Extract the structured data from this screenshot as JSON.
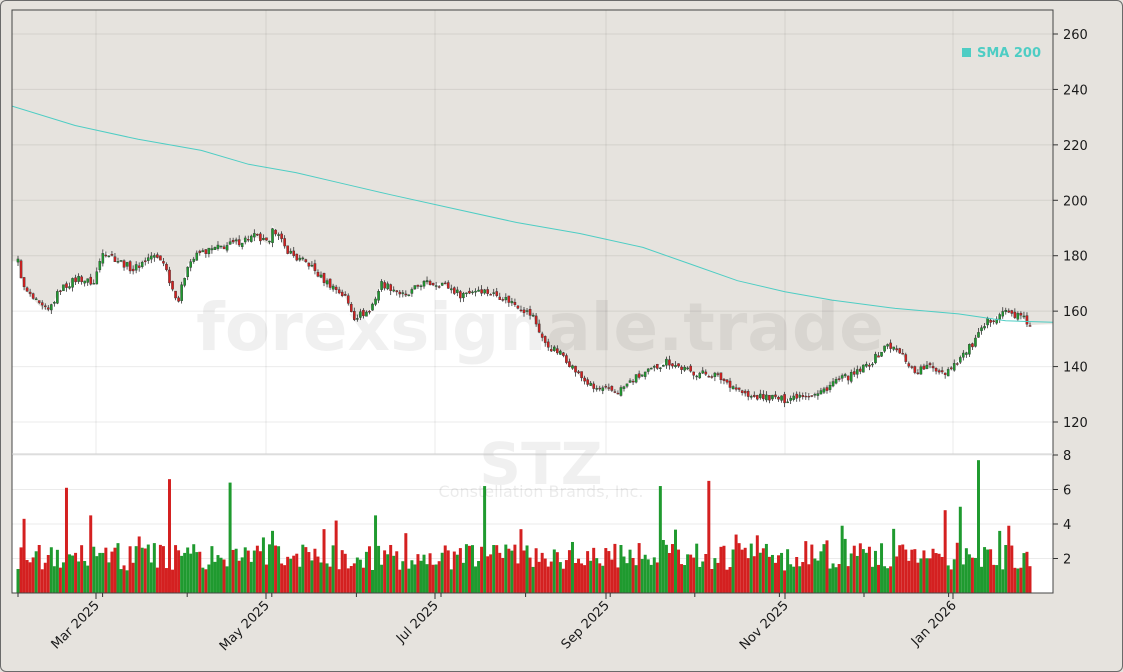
{
  "watermark": {
    "site": "forexsignale.trade",
    "ticker": "STZ",
    "company": "Constellation Brands, Inc."
  },
  "legend": {
    "label": "SMA 200",
    "color": "#4ecdc4"
  },
  "colors": {
    "up": "#1f9a2f",
    "down": "#d42020",
    "sma": "#4ecdc4",
    "plot_bg": "#ffffff",
    "fill_bg": "#e6e3de"
  },
  "chart_data": {
    "type": "candlestick",
    "x_ticks": [
      "Mar 2025",
      "May 2025",
      "Jul 2025",
      "Sep 2025",
      "Nov 2025",
      "Jan 2026"
    ],
    "price_axis": {
      "ylim": [
        115,
        268
      ],
      "ticks": [
        120,
        140,
        160,
        180,
        200,
        220,
        240,
        260
      ]
    },
    "volume_axis": {
      "ylim": [
        0,
        9
      ],
      "ticks": [
        2,
        4,
        6,
        8
      ]
    },
    "last_close": 155.3,
    "sma200": {
      "name": "SMA 200",
      "points": [
        [
          0,
          234
        ],
        [
          20,
          227
        ],
        [
          40,
          222
        ],
        [
          60,
          218
        ],
        [
          75,
          213
        ],
        [
          90,
          210
        ],
        [
          105,
          206
        ],
        [
          120,
          202
        ],
        [
          140,
          197
        ],
        [
          160,
          192
        ],
        [
          180,
          188
        ],
        [
          200,
          183
        ],
        [
          215,
          177
        ],
        [
          230,
          171
        ],
        [
          245,
          167
        ],
        [
          260,
          164
        ],
        [
          280,
          161
        ],
        [
          300,
          159
        ],
        [
          315,
          156.5
        ],
        [
          330,
          156
        ]
      ]
    },
    "price_anchors": [
      [
        0,
        178
      ],
      [
        2,
        168
      ],
      [
        7,
        162
      ],
      [
        10,
        160
      ],
      [
        14,
        168
      ],
      [
        20,
        172
      ],
      [
        25,
        170
      ],
      [
        28,
        182
      ],
      [
        32,
        179
      ],
      [
        38,
        175
      ],
      [
        44,
        180
      ],
      [
        48,
        178
      ],
      [
        51,
        168
      ],
      [
        53,
        164
      ],
      [
        56,
        177
      ],
      [
        60,
        181
      ],
      [
        70,
        184
      ],
      [
        78,
        187
      ],
      [
        83,
        184
      ],
      [
        84,
        191
      ],
      [
        88,
        183
      ],
      [
        92,
        179
      ],
      [
        96,
        177
      ],
      [
        100,
        172
      ],
      [
        105,
        168
      ],
      [
        108,
        165
      ],
      [
        111,
        158
      ],
      [
        116,
        160
      ],
      [
        120,
        170
      ],
      [
        124,
        168
      ],
      [
        128,
        165
      ],
      [
        133,
        170
      ],
      [
        140,
        170
      ],
      [
        146,
        166
      ],
      [
        152,
        168
      ],
      [
        160,
        165
      ],
      [
        165,
        162
      ],
      [
        170,
        158
      ],
      [
        174,
        148
      ],
      [
        180,
        144
      ],
      [
        185,
        137
      ],
      [
        190,
        132
      ],
      [
        198,
        131
      ],
      [
        204,
        136
      ],
      [
        208,
        138
      ],
      [
        214,
        142
      ],
      [
        222,
        138
      ],
      [
        230,
        137
      ],
      [
        236,
        133
      ],
      [
        241,
        129
      ],
      [
        248,
        129
      ],
      [
        253,
        128
      ],
      [
        258,
        130
      ],
      [
        264,
        130
      ],
      [
        270,
        135
      ],
      [
        276,
        137
      ],
      [
        282,
        142
      ],
      [
        287,
        148
      ],
      [
        292,
        144
      ],
      [
        296,
        138
      ],
      [
        300,
        140
      ],
      [
        306,
        138
      ],
      [
        310,
        142
      ],
      [
        315,
        148
      ],
      [
        320,
        156
      ],
      [
        325,
        160
      ],
      [
        331,
        158
      ],
      [
        334,
        155
      ]
    ],
    "volume_spikes": [
      [
        2,
        4.3
      ],
      [
        16,
        6.1
      ],
      [
        24,
        4.5
      ],
      [
        50,
        6.6
      ],
      [
        70,
        6.4
      ],
      [
        105,
        4.2
      ],
      [
        118,
        4.5
      ],
      [
        154,
        6.2
      ],
      [
        166,
        3.7
      ],
      [
        212,
        6.2
      ],
      [
        228,
        6.5
      ],
      [
        272,
        3.9
      ],
      [
        306,
        4.8
      ],
      [
        311,
        5
      ],
      [
        317,
        7.7
      ],
      [
        324,
        3.6
      ],
      [
        327,
        3.9
      ]
    ],
    "n_bars": 335
  }
}
